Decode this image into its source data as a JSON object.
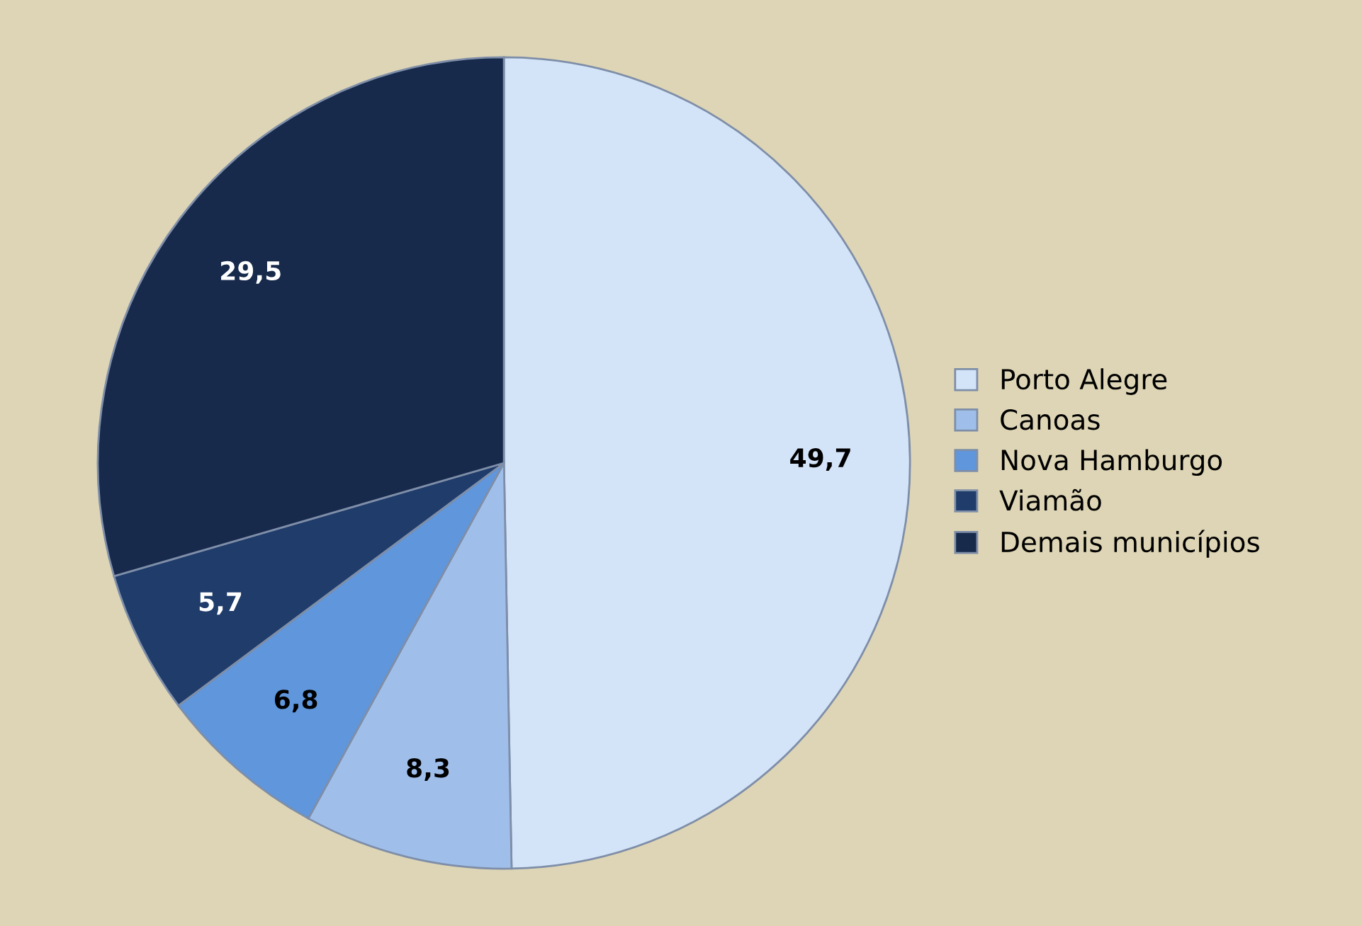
{
  "chart_data": {
    "type": "pie",
    "categories": [
      "Porto Alegre",
      "Canoas",
      "Nova Hamburgo",
      "Viamão",
      "Demais municípios"
    ],
    "values": [
      49.7,
      8.3,
      6.8,
      5.7,
      29.5
    ],
    "value_labels": [
      "49,7",
      "8,3",
      "6,8",
      "5,7",
      "29,5"
    ],
    "colors": [
      "#d3e3f8",
      "#9fbfea",
      "#5f96dc",
      "#1f3c6a",
      "#172a4c"
    ],
    "legend": "right"
  }
}
